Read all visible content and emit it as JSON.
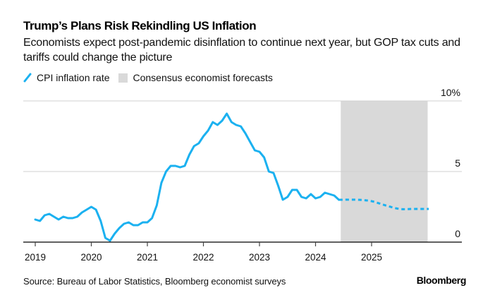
{
  "header": {
    "title": "Trump’s Plans Risk Rekindling US Inflation",
    "subtitle": "Economists expect post-pandemic disinflation to continue next year, but GOP tax cuts and tariffs could change the picture"
  },
  "legend": {
    "items": [
      {
        "label": "CPI inflation rate",
        "icon": "line-icon",
        "color": "#1bb1f0"
      },
      {
        "label": "Consensus economist forecasts",
        "icon": "swatch-icon",
        "color": "#d9d9d9"
      }
    ]
  },
  "footer": {
    "source": "Source: Bureau of Labor Statistics, Bloomberg economist surveys",
    "brand": "Bloomberg"
  },
  "chart_data": {
    "type": "line",
    "title": "Trump’s Plans Risk Rekindling US Inflation",
    "xlabel": "",
    "ylabel": "",
    "ylim": [
      0,
      10
    ],
    "yticks": [
      {
        "value": 0,
        "label": "0"
      },
      {
        "value": 5,
        "label": "5"
      },
      {
        "value": 10,
        "label": "10%"
      }
    ],
    "xlim": [
      2019.0,
      2026.3
    ],
    "xticks": [
      {
        "value": 2019,
        "label": "2019"
      },
      {
        "value": 2020,
        "label": "2020"
      },
      {
        "value": 2021,
        "label": "2021"
      },
      {
        "value": 2022,
        "label": "2022"
      },
      {
        "value": 2023,
        "label": "2023"
      },
      {
        "value": 2024,
        "label": "2024"
      },
      {
        "value": 2025,
        "label": "2025"
      }
    ],
    "grid": true,
    "legend_position": "top-left",
    "shaded_region": {
      "name": "Consensus economist forecasts",
      "x_start": 2024.45,
      "x_end": 2026.0,
      "color": "#d9d9d9"
    },
    "series": [
      {
        "name": "CPI inflation rate",
        "style": "solid",
        "color": "#1bb1f0",
        "start": "2019-01",
        "frequency": "monthly",
        "values": [
          1.6,
          1.5,
          1.9,
          2.0,
          1.8,
          1.6,
          1.8,
          1.7,
          1.7,
          1.8,
          2.1,
          2.3,
          2.5,
          2.3,
          1.5,
          0.3,
          0.1,
          0.6,
          1.0,
          1.3,
          1.4,
          1.2,
          1.2,
          1.4,
          1.4,
          1.7,
          2.6,
          4.2,
          5.0,
          5.4,
          5.4,
          5.3,
          5.4,
          6.2,
          6.8,
          7.0,
          7.5,
          7.9,
          8.5,
          8.3,
          8.6,
          9.1,
          8.5,
          8.3,
          8.2,
          7.7,
          7.1,
          6.5,
          6.4,
          6.0,
          5.0,
          4.9,
          4.0,
          3.0,
          3.2,
          3.7,
          3.7,
          3.2,
          3.1,
          3.4,
          3.1,
          3.2,
          3.5,
          3.4,
          3.3,
          3.0
        ]
      },
      {
        "name": "Consensus economist forecasts",
        "style": "dashed",
        "color": "#1bb1f0",
        "points": [
          {
            "x": 2024.42,
            "y": 3.0
          },
          {
            "x": 2024.75,
            "y": 3.0
          },
          {
            "x": 2025.0,
            "y": 2.9
          },
          {
            "x": 2025.25,
            "y": 2.6
          },
          {
            "x": 2025.5,
            "y": 2.35
          },
          {
            "x": 2025.75,
            "y": 2.35
          },
          {
            "x": 2026.02,
            "y": 2.35
          }
        ]
      }
    ]
  }
}
